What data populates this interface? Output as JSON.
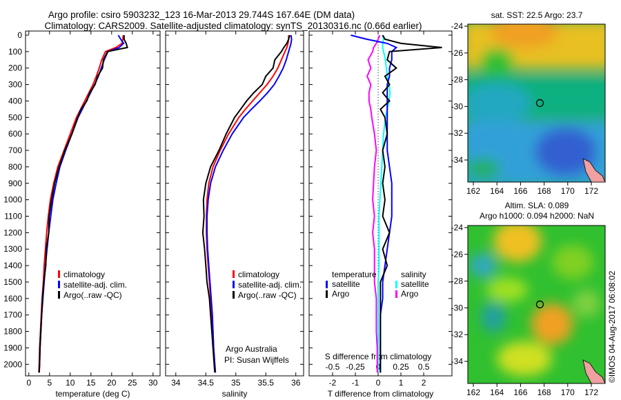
{
  "title": {
    "line1": "Argo profile: csiro 5903232_123 16-Mar-2013 29.744S 167.64E (DM data)",
    "line2": "Climatology: CARS2009. Satellite-adjusted climatology: synTS_20130316.nc (0.66d earlier)"
  },
  "colors": {
    "climatology": "#ff0000",
    "satellite": "#0000ff",
    "argo": "#000000",
    "sal_satellite": "#00ffff",
    "sal_argo": "#ff00ff"
  },
  "chart_data": [
    {
      "type": "line",
      "name": "temperature",
      "xlabel": "temperature (deg C)",
      "xlim": [
        -0.8,
        31.7
      ],
      "xticks": [
        0,
        5,
        10,
        15,
        20,
        25,
        30
      ],
      "ylim": [
        -25,
        2070
      ],
      "yticks": [
        0,
        100,
        200,
        300,
        400,
        500,
        600,
        700,
        800,
        900,
        1000,
        1100,
        1200,
        1300,
        1400,
        1500,
        1600,
        1700,
        1800,
        1900,
        2000
      ],
      "depth": [
        0,
        25,
        50,
        75,
        100,
        150,
        200,
        250,
        300,
        350,
        400,
        450,
        500,
        600,
        700,
        800,
        900,
        1000,
        1100,
        1200,
        1300,
        1400,
        1500,
        1600,
        1700,
        1800,
        1900,
        2000,
        2050
      ],
      "legend": [
        "climatology",
        "satellite-adj. clim.",
        "Argo(..raw -QC)"
      ],
      "series": [
        {
          "name": "climatology",
          "values": [
            22.8,
            22.7,
            22.5,
            21.0,
            18.5,
            17.6,
            17.0,
            16.3,
            15.5,
            14.5,
            13.5,
            12.5,
            11.5,
            10.0,
            8.5,
            7.0,
            6.0,
            5.2,
            4.7,
            4.3,
            4.0,
            3.7,
            3.5,
            3.2,
            3.0,
            2.8,
            2.6,
            2.5,
            2.4
          ]
        },
        {
          "name": "satellite-adj. clim.",
          "values": [
            21.6,
            22.2,
            22.9,
            21.8,
            19.1,
            18.2,
            17.5,
            16.8,
            15.9,
            14.9,
            13.9,
            12.9,
            11.9,
            10.4,
            8.9,
            7.5,
            6.6,
            5.8,
            5.3,
            4.8,
            4.4,
            4.0,
            3.7,
            3.4,
            3.1,
            2.9,
            2.7,
            2.6,
            2.5
          ]
        },
        {
          "name": "Argo(..raw -QC)",
          "values": [
            23.0,
            23.0,
            23.5,
            23.8,
            19.0,
            18.0,
            17.8,
            16.6,
            16.0,
            14.7,
            14.0,
            12.6,
            11.8,
            10.4,
            8.7,
            7.3,
            6.2,
            5.5,
            4.9,
            4.8,
            4.2,
            4.1,
            3.6,
            3.3,
            3.1,
            2.9,
            2.7,
            2.6,
            2.5
          ]
        }
      ]
    },
    {
      "type": "line",
      "name": "salinity",
      "xlabel": "salinity",
      "xlim": [
        33.83,
        36.13
      ],
      "xticks": [
        34,
        34.5,
        35,
        35.5,
        36
      ],
      "ylim": [
        -25,
        2070
      ],
      "legend": [
        "climatology",
        "satellite-adj. clim.",
        "Argo(..raw -QC)"
      ],
      "annotation": [
        "Argo Australia",
        "PI: Susan Wijffels"
      ],
      "series": [
        {
          "name": "climatology",
          "values": [
            35.88,
            35.88,
            35.87,
            35.85,
            35.82,
            35.76,
            35.7,
            35.62,
            35.52,
            35.4,
            35.28,
            35.16,
            35.05,
            34.88,
            34.74,
            34.62,
            34.55,
            34.52,
            34.51,
            34.51,
            34.52,
            34.54,
            34.56,
            34.58,
            34.6,
            34.62,
            34.63,
            34.65,
            34.66
          ]
        },
        {
          "name": "satellite-adj. clim.",
          "values": [
            35.92,
            35.93,
            35.92,
            35.9,
            35.88,
            35.84,
            35.79,
            35.72,
            35.64,
            35.53,
            35.4,
            35.26,
            35.13,
            34.94,
            34.79,
            34.66,
            34.58,
            34.54,
            34.52,
            34.52,
            34.53,
            34.55,
            34.57,
            34.59,
            34.61,
            34.62,
            34.63,
            34.65,
            34.66
          ]
        },
        {
          "name": "Argo(..raw -QC)",
          "values": [
            35.9,
            35.88,
            35.85,
            35.8,
            35.76,
            35.65,
            35.62,
            35.5,
            35.44,
            35.3,
            35.18,
            35.08,
            34.98,
            34.84,
            34.72,
            34.58,
            34.5,
            34.46,
            34.47,
            34.45,
            34.48,
            34.5,
            34.52,
            34.56,
            34.58,
            34.6,
            34.62,
            34.64,
            34.65
          ]
        }
      ]
    },
    {
      "type": "line",
      "name": "differences",
      "xlabel": "T difference from climatology",
      "xlim": [
        -3.03,
        3.24
      ],
      "xticks": [
        -2,
        -1,
        0,
        1,
        2
      ],
      "x2label": "S difference from climatology",
      "x2lim": [
        -0.757,
        0.81
      ],
      "x2ticks": [
        "-0.5",
        "-0.25",
        "0",
        "0.25",
        "0.5"
      ],
      "legend": {
        "temperature_title": "temperature",
        "salinity_title": "salinity",
        "t_satellite": "satellite",
        "t_argo": "Argo",
        "s_satellite": "satellite",
        "s_argo": "Argo"
      },
      "series": [
        {
          "name": "T satellite",
          "axis": "T",
          "values": [
            -1.2,
            -0.5,
            0.4,
            0.8,
            0.6,
            0.6,
            0.5,
            0.5,
            0.4,
            0.4,
            0.4,
            0.4,
            0.4,
            0.4,
            0.4,
            0.5,
            0.6,
            0.6,
            0.6,
            0.5,
            0.4,
            0.3,
            0.2,
            0.2,
            0.1,
            0.1,
            0.1,
            0.1,
            0.1
          ]
        },
        {
          "name": "T Argo",
          "axis": "T",
          "values": [
            0.2,
            0.3,
            1.0,
            2.8,
            0.5,
            0.4,
            0.8,
            0.3,
            0.5,
            0.2,
            0.5,
            0.1,
            0.3,
            0.4,
            0.2,
            0.3,
            0.2,
            0.3,
            0.2,
            0.5,
            0.2,
            0.4,
            0.1,
            0.1,
            0.1,
            0.1,
            0.1,
            0.1,
            0.1
          ]
        },
        {
          "name": "S satellite",
          "axis": "S",
          "values": [
            0.05,
            0.06,
            0.05,
            0.05,
            0.06,
            0.08,
            0.09,
            0.1,
            0.12,
            0.13,
            0.12,
            0.1,
            0.08,
            0.06,
            0.05,
            0.04,
            0.03,
            0.02,
            0.01,
            0.01,
            0.01,
            0.01,
            0.0,
            0.0,
            0.0,
            0.0,
            0.0,
            0.0,
            0.0
          ]
        },
        {
          "name": "S Argo",
          "axis": "S",
          "values": [
            0.02,
            0.0,
            -0.02,
            -0.05,
            -0.06,
            -0.11,
            -0.08,
            -0.12,
            -0.08,
            -0.1,
            -0.1,
            -0.08,
            -0.07,
            -0.04,
            -0.02,
            -0.04,
            -0.05,
            -0.06,
            -0.04,
            -0.06,
            -0.04,
            -0.04,
            -0.04,
            -0.02,
            -0.02,
            -0.02,
            -0.01,
            -0.01,
            -0.01
          ]
        }
      ]
    }
  ],
  "maps": [
    {
      "title": "sat. SST: 22.5 Argo: 23.7",
      "lon_ticks": [
        162,
        164,
        166,
        168,
        170,
        172
      ],
      "lat_ticks": [
        -24,
        -26,
        -28,
        -30,
        -32,
        -34
      ],
      "marker": {
        "lon": 167.64,
        "lat": -29.744
      }
    },
    {
      "title1": "Altim. SLA: 0.089",
      "title2": "Argo h1000: 0.094 h2000: NaN",
      "lon_ticks": [
        162,
        164,
        166,
        168,
        170,
        172
      ],
      "lat_ticks": [
        -24,
        -26,
        -28,
        -30,
        -32,
        -34
      ],
      "marker": {
        "lon": 167.64,
        "lat": -29.744
      }
    }
  ],
  "credit": "©IMOS 04-Aug-2017 06:08:02"
}
